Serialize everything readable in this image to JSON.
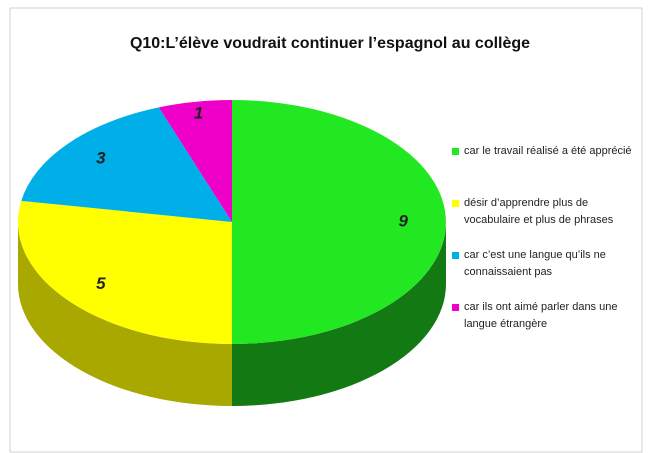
{
  "chart_data": {
    "type": "pie",
    "title": "Q10:L’élève voudrait continuer l’espagnol au collège",
    "categories": [
      "car le travail réalisé a été apprécié",
      "désir d’apprendre plus de vocabulaire et plus de phrases",
      "car c’est une langue qu’ils ne connaissaient pas",
      "car ils ont aimé parler dans une langue étrangère"
    ],
    "values": [
      9,
      5,
      3,
      1
    ],
    "colors": [
      "#22e822",
      "#ffff00",
      "#00aee8",
      "#ee00c8"
    ],
    "side_colors": [
      "#137a13",
      "#a8a800",
      "#00708f",
      "#8a0073"
    ],
    "legend": "right"
  }
}
